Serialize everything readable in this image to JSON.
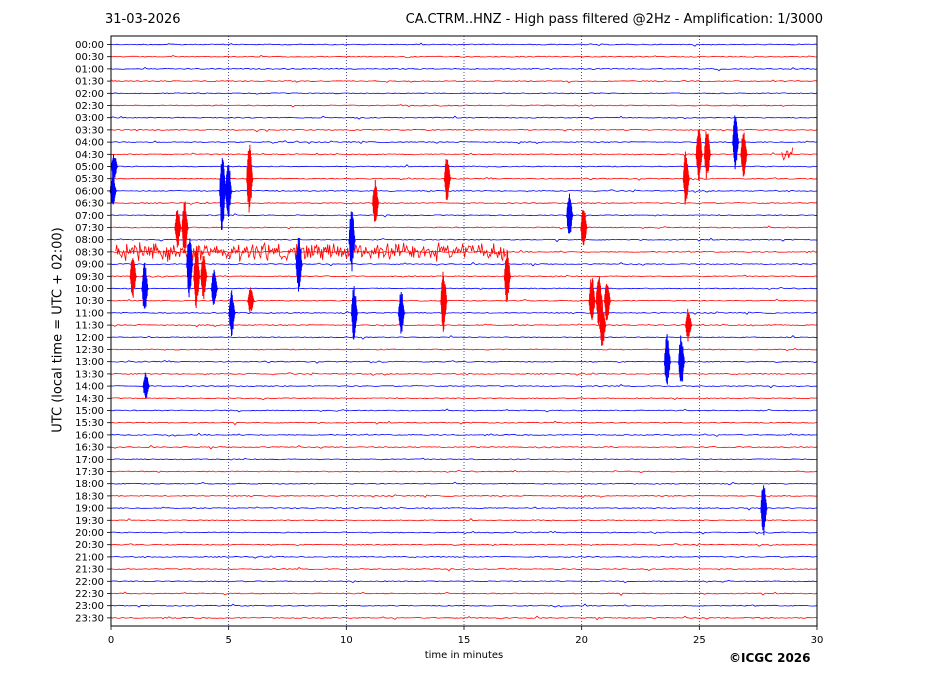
{
  "chart_data": {
    "type": "line",
    "title": "CA.CTRM..HNZ - High pass filtered @2Hz - Amplification: 1/3000",
    "date": "31-03-2026",
    "xlabel": "time in minutes",
    "ylabel": "UTC (local time = UTC + 02:00)",
    "xlim": [
      0,
      30
    ],
    "x_ticks": [
      "0",
      "5",
      "10",
      "15",
      "20",
      "25",
      "30"
    ],
    "grid": "vertical dotted at 5-minute intervals",
    "trace_colors": [
      "#0000ff",
      "#ff0000"
    ],
    "rows": [
      "00:00",
      "00:30",
      "01:00",
      "01:30",
      "02:00",
      "02:30",
      "03:00",
      "03:30",
      "04:00",
      "04:30",
      "05:00",
      "05:30",
      "06:00",
      "06:30",
      "07:00",
      "07:30",
      "08:00",
      "08:30",
      "09:00",
      "09:30",
      "10:00",
      "10:30",
      "11:00",
      "11:30",
      "12:00",
      "12:30",
      "13:00",
      "13:30",
      "14:00",
      "14:30",
      "15:00",
      "15:30",
      "16:00",
      "16:30",
      "17:00",
      "17:30",
      "18:00",
      "18:30",
      "19:00",
      "19:30",
      "20:00",
      "20:30",
      "21:00",
      "21:30",
      "22:00",
      "22:30",
      "23:00",
      "23:30"
    ],
    "events": [
      {
        "row": "05:00",
        "minute": 0.1,
        "amplitude": 1.5
      },
      {
        "row": "06:00",
        "minute": 0.05,
        "amplitude": 1.8
      },
      {
        "row": "09:30",
        "minute": 0.9,
        "amplitude": 2.4
      },
      {
        "row": "10:00",
        "minute": 1.4,
        "amplitude": 2.8
      },
      {
        "row": "14:00",
        "minute": 1.45,
        "amplitude": 1.5
      },
      {
        "row": "07:30",
        "minute": 2.8,
        "amplitude": 2.2
      },
      {
        "row": "07:30",
        "minute": 3.1,
        "amplitude": 3.2
      },
      {
        "row": "09:00",
        "minute": 3.3,
        "amplitude": 3.6
      },
      {
        "row": "09:30",
        "minute": 3.6,
        "amplitude": 3.5
      },
      {
        "row": "09:30",
        "minute": 3.9,
        "amplitude": 2.5
      },
      {
        "row": "10:00",
        "minute": 4.35,
        "amplitude": 2.2
      },
      {
        "row": "06:00",
        "minute": 4.7,
        "amplitude": 4.6
      },
      {
        "row": "06:00",
        "minute": 4.95,
        "amplitude": 3.5
      },
      {
        "row": "11:00",
        "minute": 5.1,
        "amplitude": 2.5
      },
      {
        "row": "05:30",
        "minute": 5.85,
        "amplitude": 4.0
      },
      {
        "row": "10:30",
        "minute": 5.9,
        "amplitude": 1.5
      },
      {
        "row": "09:00",
        "minute": 7.95,
        "amplitude": 3.0
      },
      {
        "row": "08:00",
        "minute": 10.2,
        "amplitude": 3.5
      },
      {
        "row": "11:00",
        "minute": 10.3,
        "amplitude": 3.0
      },
      {
        "row": "06:30",
        "minute": 11.2,
        "amplitude": 2.5
      },
      {
        "row": "11:00",
        "minute": 12.3,
        "amplitude": 2.5
      },
      {
        "row": "05:30",
        "minute": 14.25,
        "amplitude": 2.5
      },
      {
        "row": "10:30",
        "minute": 14.1,
        "amplitude": 3.5
      },
      {
        "row": "09:30",
        "minute": 16.8,
        "amplitude": 3.0
      },
      {
        "row": "07:00",
        "minute": 19.45,
        "amplitude": 2.5
      },
      {
        "row": "07:30",
        "minute": 20.05,
        "amplitude": 2.5
      },
      {
        "row": "10:30",
        "minute": 20.4,
        "amplitude": 2.8
      },
      {
        "row": "10:30",
        "minute": 20.7,
        "amplitude": 2.8
      },
      {
        "row": "11:30",
        "minute": 20.85,
        "amplitude": 2.5
      },
      {
        "row": "10:30",
        "minute": 21.05,
        "amplitude": 2.3
      },
      {
        "row": "13:00",
        "minute": 23.6,
        "amplitude": 3.2
      },
      {
        "row": "13:00",
        "minute": 24.2,
        "amplitude": 3.0
      },
      {
        "row": "11:30",
        "minute": 24.5,
        "amplitude": 1.8
      },
      {
        "row": "05:30",
        "minute": 24.4,
        "amplitude": 3.0
      },
      {
        "row": "04:30",
        "minute": 24.95,
        "amplitude": 3.0
      },
      {
        "row": "04:30",
        "minute": 25.3,
        "amplitude": 3.0
      },
      {
        "row": "04:00",
        "minute": 26.5,
        "amplitude": 3.0
      },
      {
        "row": "04:30",
        "minute": 26.85,
        "amplitude": 2.8
      },
      {
        "row": "19:00",
        "minute": 27.7,
        "amplitude": 3.0
      }
    ],
    "noise_bursts": [
      {
        "row": "08:30",
        "start": 0.2,
        "end": 16.8,
        "amplitude": 0.6
      },
      {
        "row": "04:30",
        "start": 28.5,
        "end": 29.0,
        "amplitude": 0.5
      }
    ]
  },
  "header": {
    "date": "31-03-2026",
    "title": "CA.CTRM..HNZ - High pass filtered @2Hz - Amplification: 1/3000"
  },
  "axes": {
    "xlabel": "time in minutes",
    "ylabel": "UTC (local time = UTC + 02:00)"
  },
  "footer": {
    "copyright": "©ICGC 2026"
  }
}
